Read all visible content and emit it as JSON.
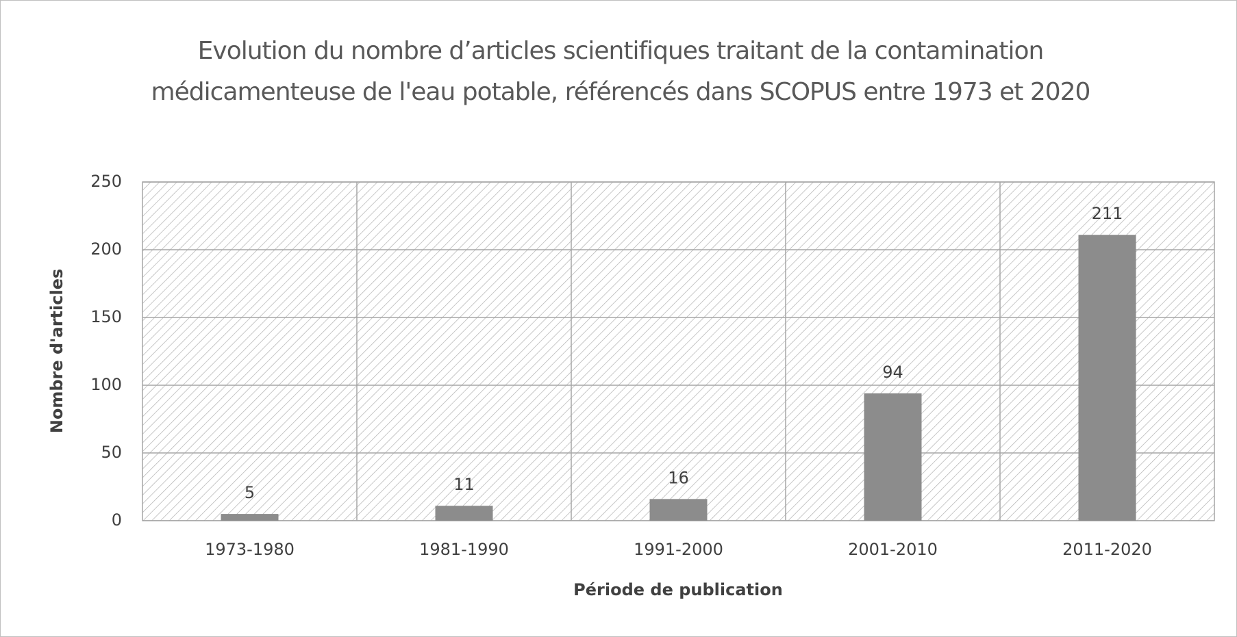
{
  "chart_data": {
    "type": "bar",
    "title": "Evolution du nombre d’articles scientifiques traitant de la contamination médicamenteuse de l'eau potable, référencés dans SCOPUS entre 1973 et 2020",
    "x_label": "Période de publication",
    "y_label": "Nombre d'articles",
    "categories": [
      "1973-1980",
      "1981-1990",
      "1991-2000",
      "2001-2010",
      "2011-2020"
    ],
    "values": [
      5,
      11,
      16,
      94,
      211
    ],
    "color": "#8c8c8c",
    "ylim": [
      0,
      250
    ],
    "yticks": [
      0,
      50,
      100,
      150,
      200,
      250
    ],
    "grid": true
  }
}
